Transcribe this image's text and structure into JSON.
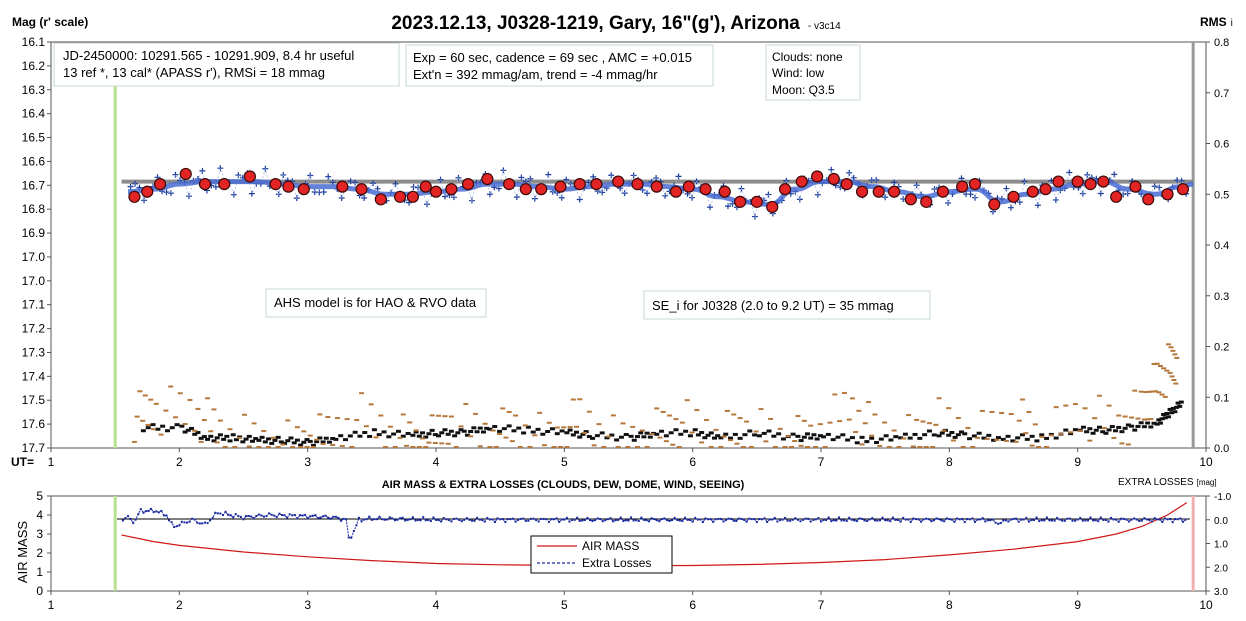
{
  "chart_data": [
    {
      "type": "scatter",
      "title": "2023.12.13, J0328-1219, Gary, 16\"(g'), Arizona",
      "title_suffix": "- v3c14",
      "ylabel": "Mag (r' scale)",
      "y2label": "RMS",
      "y2label_suffix": "i",
      "xlabel": "UT=",
      "xlim": [
        1,
        10
      ],
      "ylim": [
        16.1,
        17.7
      ],
      "y2lim": [
        0.0,
        0.8
      ],
      "x_ticks": [
        "1",
        "2",
        "3",
        "4",
        "5",
        "6",
        "7",
        "8",
        "9",
        "10"
      ],
      "y_ticks": [
        "16.1",
        "16.2",
        "16.3",
        "16.4",
        "16.5",
        "16.6",
        "16.7",
        "16.8",
        "16.9",
        "17.0",
        "17.0",
        "17.1",
        "17.2",
        "17.3",
        "17.4",
        "17.5",
        "17.6",
        "17.7"
      ],
      "y2_ticks": [
        "0.8",
        "0.7",
        "0.6",
        "0.5",
        "0.4",
        "0.3",
        "0.2",
        "0.1",
        "0.0"
      ],
      "info_boxes": [
        [
          "JD-2450000: 10291.565 - 10291.909, 8.4 hr useful",
          "13 ref *, 13 cal*  (APASS r'), RMSi = 18 mmag"
        ],
        [
          "Exp = 60 sec, cadence = 69 sec , AMC = +0.015",
          "Ext'n = 392 mmag/am, trend = -4 mmag/hr"
        ],
        [
          "Clouds: none",
          "Wind:   low",
          "Moon:  Q3.5"
        ]
      ],
      "annotations": [
        "AHS model is for HAO & RVO data",
        "SE_i for J0328 (2.0 to 9.2 UT) = 35 mmag"
      ],
      "reference_mag": 16.65,
      "vertical_markers": [
        1.5,
        9.9
      ],
      "binned_points": {
        "x": [
          1.65,
          1.75,
          1.85,
          2.05,
          2.2,
          2.35,
          2.55,
          2.75,
          2.85,
          2.97,
          3.27,
          3.42,
          3.57,
          3.72,
          3.82,
          3.92,
          4.0,
          4.12,
          4.25,
          4.4,
          4.57,
          4.7,
          4.82,
          4.97,
          5.12,
          5.25,
          5.42,
          5.57,
          5.72,
          5.87,
          5.97,
          6.1,
          6.25,
          6.37,
          6.5,
          6.62,
          6.72,
          6.85,
          6.97,
          7.1,
          7.2,
          7.32,
          7.45,
          7.57,
          7.7,
          7.82,
          7.95,
          8.1,
          8.2,
          8.35,
          8.5,
          8.65,
          8.75,
          8.85,
          9.0,
          9.1,
          9.2,
          9.3,
          9.45,
          9.55,
          9.7,
          9.82
        ],
        "y": [
          16.71,
          16.69,
          16.66,
          16.62,
          16.66,
          16.66,
          16.63,
          16.66,
          16.67,
          16.68,
          16.67,
          16.68,
          16.72,
          16.71,
          16.71,
          16.67,
          16.69,
          16.68,
          16.66,
          16.64,
          16.66,
          16.68,
          16.68,
          16.67,
          16.66,
          16.66,
          16.65,
          16.66,
          16.67,
          16.69,
          16.67,
          16.68,
          16.69,
          16.73,
          16.73,
          16.75,
          16.68,
          16.65,
          16.63,
          16.64,
          16.66,
          16.69,
          16.69,
          16.69,
          16.72,
          16.73,
          16.69,
          16.67,
          16.66,
          16.74,
          16.71,
          16.69,
          16.68,
          16.65,
          16.65,
          16.66,
          16.65,
          16.71,
          16.67,
          16.72,
          16.7,
          16.68
        ]
      },
      "model_curve": {
        "x": [
          1.6,
          1.8,
          2.0,
          2.2,
          2.4,
          2.6,
          2.8,
          3.0,
          3.2,
          3.4,
          3.6,
          3.8,
          4.0,
          4.2,
          4.4,
          4.6,
          4.8,
          5.0,
          5.2,
          5.4,
          5.6,
          5.8,
          6.0,
          6.2,
          6.4,
          6.6,
          6.8,
          7.0,
          7.2,
          7.4,
          7.6,
          7.8,
          8.0,
          8.2,
          8.4,
          8.6,
          8.8,
          9.0,
          9.2,
          9.4,
          9.6,
          9.8,
          9.9
        ],
        "y": [
          16.69,
          16.68,
          16.66,
          16.65,
          16.65,
          16.65,
          16.66,
          16.67,
          16.67,
          16.68,
          16.7,
          16.7,
          16.69,
          16.68,
          16.66,
          16.66,
          16.67,
          16.68,
          16.67,
          16.66,
          16.66,
          16.67,
          16.68,
          16.71,
          16.73,
          16.74,
          16.68,
          16.65,
          16.65,
          16.67,
          16.69,
          16.71,
          16.69,
          16.68,
          16.73,
          16.7,
          16.68,
          16.66,
          16.65,
          16.68,
          16.7,
          16.67,
          16.66
        ]
      },
      "rms_series": [
        {
          "x": [
            1.72,
            2.02,
            2.22,
            2.42,
            2.62,
            2.82,
            3.02,
            3.22,
            3.52,
            3.82,
            4.02,
            4.22,
            4.42,
            4.72,
            5.02,
            5.22,
            5.52,
            5.72,
            6.02,
            6.22,
            6.52,
            6.82,
            7.02,
            7.32,
            7.62,
            7.92,
            8.12,
            8.42,
            8.72,
            9.02,
            9.22,
            9.42,
            9.62,
            9.72,
            9.82
          ],
          "y": [
            0.04,
            0.04,
            0.02,
            0.02,
            0.015,
            0.015,
            0.01,
            0.02,
            0.03,
            0.025,
            0.03,
            0.03,
            0.04,
            0.035,
            0.03,
            0.025,
            0.02,
            0.03,
            0.03,
            0.02,
            0.03,
            0.02,
            0.025,
            0.015,
            0.02,
            0.03,
            0.025,
            0.02,
            0.02,
            0.035,
            0.035,
            0.04,
            0.05,
            0.07,
            0.09
          ]
        },
        {
          "x": [
            1.65,
            1.82,
            2.12,
            2.32,
            2.62,
            2.92,
            3.12,
            3.42,
            3.72,
            3.92,
            4.12,
            4.42,
            4.62,
            4.92,
            5.12,
            5.42,
            5.72,
            5.92,
            6.22,
            6.42,
            6.72,
            6.92,
            7.22,
            7.42,
            7.72,
            7.92,
            8.22,
            8.52,
            8.72,
            9.02,
            9.32,
            9.52,
            9.62,
            9.72,
            9.78
          ],
          "y": [
            0.06,
            0.075,
            0.07,
            0.03,
            0.01,
            0.005,
            0.02,
            0.06,
            0.02,
            0.005,
            0.05,
            0.02,
            0.04,
            0.01,
            0.06,
            0.01,
            0.03,
            0.05,
            0.02,
            0.04,
            0.01,
            0.02,
            0.08,
            0.03,
            0.015,
            0.05,
            0.02,
            0.06,
            0.01,
            0.07,
            0.04,
            0.08,
            0.13,
            0.16,
            0.18
          ]
        }
      ]
    },
    {
      "type": "line",
      "title": "AIR MASS & EXTRA LOSSES (CLOUDS, DEW, DOME, WIND, SEEING)",
      "ylabel": "AIR MASS",
      "y2label": "EXTRA LOSSES",
      "y2label_unit": "[mag]",
      "xlim": [
        1,
        10
      ],
      "ylim": [
        0,
        5
      ],
      "y2lim": [
        3.0,
        -1.0
      ],
      "x_ticks": [
        "1",
        "2",
        "3",
        "4",
        "5",
        "6",
        "7",
        "8",
        "9",
        "10"
      ],
      "y_ticks": [
        "0",
        "1",
        "2",
        "3",
        "4",
        "5"
      ],
      "y2_ticks": [
        "-1.0",
        "0.0",
        "1.0",
        "2.0",
        "3.0"
      ],
      "legend": [
        "AIR MASS",
        "Extra Losses"
      ],
      "legend_position": "bottom-center",
      "series": [
        {
          "name": "AIR MASS",
          "x": [
            1.55,
            1.8,
            2.0,
            2.5,
            3.0,
            3.5,
            4.0,
            4.5,
            5.0,
            5.5,
            6.0,
            6.5,
            7.0,
            7.5,
            8.0,
            8.5,
            9.0,
            9.3,
            9.5,
            9.7,
            9.85
          ],
          "y": [
            2.95,
            2.6,
            2.4,
            2.05,
            1.8,
            1.6,
            1.45,
            1.38,
            1.35,
            1.33,
            1.34,
            1.4,
            1.5,
            1.65,
            1.9,
            2.2,
            2.6,
            3.0,
            3.4,
            4.0,
            4.65
          ]
        },
        {
          "name": "Extra Losses",
          "x": [
            1.55,
            1.6,
            1.65,
            1.7,
            1.75,
            1.8,
            1.9,
            1.95,
            2.0,
            2.1,
            2.2,
            2.3,
            2.5,
            2.7,
            3.0,
            3.2,
            3.3,
            3.32,
            3.35,
            3.4,
            3.5,
            4.0,
            4.5,
            5.0,
            5.5,
            6.0,
            6.5,
            7.0,
            7.5,
            8.0,
            8.3,
            8.4,
            8.45,
            8.5,
            9.0,
            9.5,
            9.9
          ],
          "y": [
            0.0,
            -0.1,
            0.1,
            -0.4,
            -0.35,
            -0.4,
            -0.2,
            0.3,
            0.2,
            0.0,
            0.2,
            -0.3,
            -0.1,
            -0.2,
            -0.15,
            -0.1,
            0.0,
            0.8,
            0.6,
            0.0,
            -0.05,
            0.0,
            0.0,
            0.0,
            0.0,
            0.0,
            0.0,
            0.0,
            0.0,
            0.0,
            0.0,
            0.15,
            0.0,
            0.0,
            0.0,
            0.0,
            0.0
          ]
        }
      ],
      "vertical_markers": [
        1.5,
        9.9
      ]
    }
  ]
}
